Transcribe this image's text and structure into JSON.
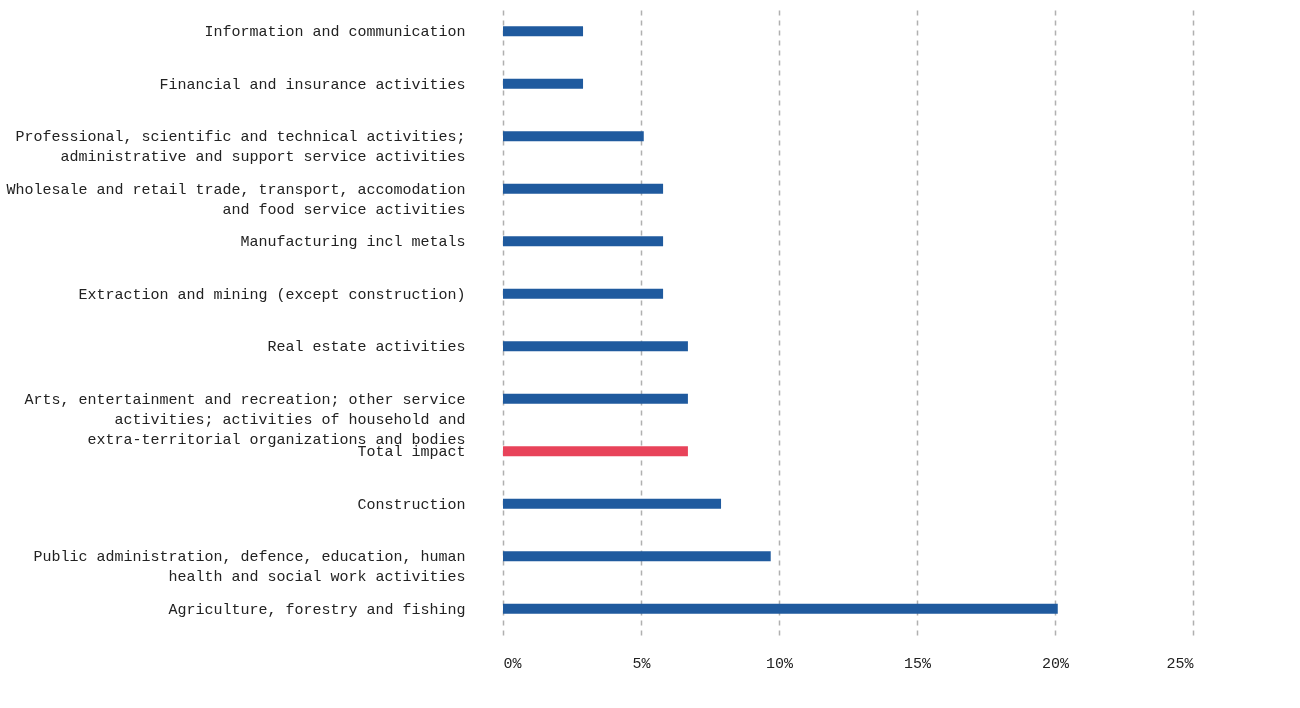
{
  "chart_data": {
    "type": "bar",
    "orientation": "horizontal",
    "categories": [
      "Information and communication",
      "Financial and insurance activities",
      "Professional, scientific and technical activities; administrative and support service activities",
      "Wholesale and retail trade, transport, accomodation and food service activities",
      "Manufacturing incl metals",
      "Extraction and mining (except construction)",
      "Real estate activities",
      "Arts, entertainment and recreation; other service activities; activities of household and extra-territorial organizations and bodies",
      "Total impact",
      "Construction",
      "Public administration, defence, education, human health and social work activities",
      "Agriculture, forestry and fishing"
    ],
    "values": [
      2.9,
      2.9,
      5.1,
      5.8,
      5.8,
      5.8,
      6.7,
      6.7,
      6.7,
      7.9,
      9.7,
      20.1
    ],
    "colors": [
      "#1f5a9e",
      "#1f5a9e",
      "#1f5a9e",
      "#1f5a9e",
      "#1f5a9e",
      "#1f5a9e",
      "#1f5a9e",
      "#1f5a9e",
      "#e8435a",
      "#1f5a9e",
      "#1f5a9e",
      "#1f5a9e"
    ],
    "xlim": [
      0,
      25
    ],
    "xticks": [
      {
        "value": 0,
        "label": "0%"
      },
      {
        "value": 5,
        "label": "5%"
      },
      {
        "value": 10,
        "label": "10%"
      },
      {
        "value": 15,
        "label": "15%"
      },
      {
        "value": 20,
        "label": "20%"
      },
      {
        "value": 25,
        "label": "25%"
      }
    ],
    "grid": "x"
  }
}
